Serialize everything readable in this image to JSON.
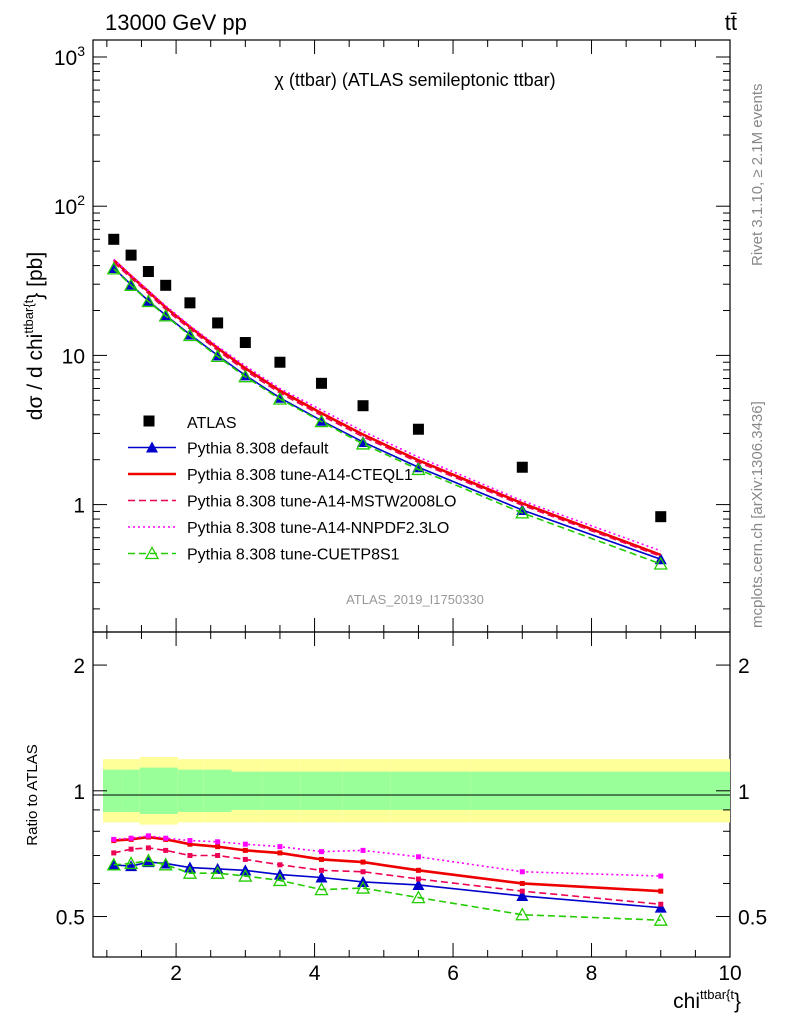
{
  "header": {
    "energy": "13000 GeV pp",
    "process": "tt̄",
    "title": "χ (ttbar) (ATLAS semileptonic ttbar)",
    "analysis": "ATLAS_2019_I1750330",
    "side_upper": "Rivet 3.1.10, ≥ 2.1M events",
    "side_lower": "mcplots.cern.ch [arXiv:1306.3436]"
  },
  "axes": {
    "ylabel_main_prefix": "dσ / d chi",
    "ylabel_main_sup": "ttbar{t",
    "ylabel_main_suffix": "} [pb]",
    "ylabel_ratio": "Ratio to ATLAS",
    "xlabel_prefix": "chi",
    "xlabel_sup": "ttbar{t",
    "xlabel_suffix": "}"
  },
  "ticks": {
    "main_y": [
      {
        "v": 1,
        "label": "1"
      },
      {
        "v": 10,
        "label": "10"
      },
      {
        "v": 100,
        "label": "10",
        "exp": "2"
      },
      {
        "v": 1000,
        "label": "10",
        "exp": "3"
      }
    ],
    "ratio_y": [
      {
        "v": 0.5,
        "label": "0.5"
      },
      {
        "v": 1,
        "label": "1"
      },
      {
        "v": 2,
        "label": "2"
      }
    ],
    "x": [
      {
        "v": 2,
        "label": "2"
      },
      {
        "v": 4,
        "label": "4"
      },
      {
        "v": 6,
        "label": "6"
      },
      {
        "v": 8,
        "label": "8"
      },
      {
        "v": 10,
        "label": "10"
      }
    ]
  },
  "chart_data": {
    "type": "line",
    "x_range": [
      0.8,
      10
    ],
    "main_y_range": [
      0.14,
      1300
    ],
    "main_y_scale": "log",
    "ratio_y_range": [
      0.4,
      2.4
    ],
    "ratio_y_scale": "log",
    "legend_position": "bottom-left",
    "bins": [
      1.1,
      1.35,
      1.6,
      1.85,
      2.2,
      2.6,
      3.0,
      3.5,
      4.1,
      4.7,
      5.5,
      7.0,
      9.0
    ],
    "data": {
      "name": "ATLAS",
      "values": [
        60,
        47,
        36.5,
        29.5,
        22.5,
        16.5,
        12.2,
        9.0,
        6.5,
        4.6,
        3.2,
        1.78,
        0.83
      ],
      "band_inner": [
        0.89,
        0.89,
        0.88,
        0.88,
        0.89,
        0.89,
        0.9,
        0.9,
        0.9,
        0.9,
        0.9,
        0.9,
        0.9
      ],
      "band_outer": [
        0.84,
        0.84,
        0.83,
        0.83,
        0.84,
        0.84,
        0.84,
        0.84,
        0.84,
        0.84,
        0.84,
        0.84,
        0.84
      ]
    },
    "series": [
      {
        "name": "Pythia 8.308 default",
        "color": "#0000cc",
        "style": "solid",
        "marker": "triangle-filled",
        "main": [
          38.5,
          29.8,
          23.2,
          18.6,
          13.8,
          10.0,
          7.35,
          5.2,
          3.65,
          2.63,
          1.78,
          0.92,
          0.43
        ],
        "ratio": [
          0.665,
          0.66,
          0.675,
          0.67,
          0.655,
          0.65,
          0.645,
          0.63,
          0.62,
          0.605,
          0.595,
          0.56,
          0.525
        ]
      },
      {
        "name": "Pythia 8.308 tune-A14-CTEQL1",
        "color": "#ee0000",
        "style": "solid-thick",
        "marker": "none",
        "main": [
          43.5,
          34.0,
          26.8,
          21.0,
          15.5,
          11.2,
          8.2,
          5.8,
          4.1,
          2.95,
          1.98,
          1.02,
          0.46
        ],
        "ratio": [
          0.76,
          0.765,
          0.775,
          0.765,
          0.745,
          0.735,
          0.72,
          0.71,
          0.685,
          0.675,
          0.645,
          0.6,
          0.575
        ]
      },
      {
        "name": "Pythia 8.308 tune-A14-MSTW2008LO",
        "color": "#ee0055",
        "style": "dashed",
        "marker": "none",
        "main": [
          42.0,
          33.0,
          26.0,
          20.3,
          15.0,
          10.8,
          7.9,
          5.6,
          3.95,
          2.85,
          1.92,
          0.99,
          0.45
        ],
        "ratio": [
          0.71,
          0.725,
          0.73,
          0.72,
          0.7,
          0.7,
          0.685,
          0.665,
          0.645,
          0.64,
          0.615,
          0.575,
          0.535
        ]
      },
      {
        "name": "Pythia 8.308 tune-A14-NNPDF2.3LO",
        "color": "#ff00ff",
        "style": "dotted",
        "marker": "none",
        "main": [
          44.0,
          34.5,
          27.2,
          21.5,
          15.8,
          11.5,
          8.5,
          6.0,
          4.3,
          3.1,
          2.08,
          1.06,
          0.49
        ],
        "ratio": [
          0.765,
          0.77,
          0.78,
          0.77,
          0.76,
          0.755,
          0.745,
          0.735,
          0.715,
          0.72,
          0.695,
          0.64,
          0.625
        ]
      },
      {
        "name": "Pythia 8.308 tune-CUETP8S1",
        "color": "#22cc00",
        "style": "dashed",
        "marker": "triangle-open",
        "main": [
          38.0,
          29.5,
          23.0,
          18.4,
          13.6,
          9.85,
          7.2,
          5.1,
          3.6,
          2.55,
          1.72,
          0.88,
          0.4
        ],
        "ratio": [
          0.665,
          0.67,
          0.68,
          0.665,
          0.635,
          0.635,
          0.625,
          0.61,
          0.58,
          0.585,
          0.555,
          0.505,
          0.49
        ]
      }
    ]
  }
}
